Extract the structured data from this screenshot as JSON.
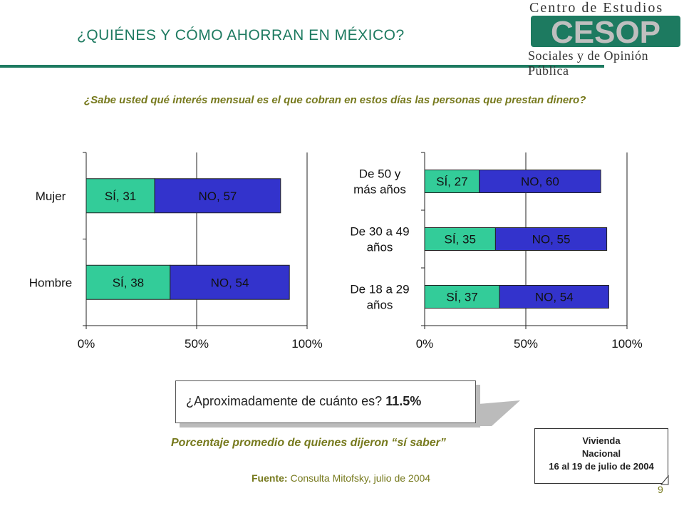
{
  "header": {
    "title": "¿QUIÉNES Y CÓMO AHORRAN EN MÉXICO?",
    "logo_line1": "Centro de Estudios",
    "logo_letters": "CESOP",
    "logo_line2": "Sociales y de Opinión Pública"
  },
  "question": "¿Sabe usted qué interés mensual es el que cobran en estos días las personas que prestan dinero?",
  "colors": {
    "si": "#33cc99",
    "no": "#3333cc",
    "accent": "#1d7a60",
    "olive": "#777a1e"
  },
  "chart_data": [
    {
      "type": "bar",
      "orientation": "horizontal",
      "stacked": true,
      "categories": [
        "Mujer",
        "Hombre"
      ],
      "series": [
        {
          "name": "SÍ",
          "values": [
            31,
            38
          ],
          "labels": [
            "SÍ, 31",
            "SÍ, 38"
          ]
        },
        {
          "name": "NO",
          "values": [
            57,
            54
          ],
          "labels": [
            "NO, 57",
            "NO, 54"
          ]
        }
      ],
      "xlim": [
        0,
        100
      ],
      "xticks": [
        "0%",
        "50%",
        "100%"
      ],
      "grid": true
    },
    {
      "type": "bar",
      "orientation": "horizontal",
      "stacked": true,
      "categories": [
        [
          "De 50 y",
          "más años"
        ],
        [
          "De 30 a 49",
          "años"
        ],
        [
          "De 18 a 29",
          "años"
        ]
      ],
      "series": [
        {
          "name": "SÍ",
          "values": [
            27,
            35,
            37
          ],
          "labels": [
            "SÍ, 27",
            "SÍ, 35",
            "SÍ, 37"
          ]
        },
        {
          "name": "NO",
          "values": [
            60,
            55,
            54
          ],
          "labels": [
            "NO, 60",
            "NO, 55",
            "NO, 54"
          ]
        }
      ],
      "xlim": [
        0,
        100
      ],
      "xticks": [
        "0%",
        "50%",
        "100%"
      ],
      "grid": true
    }
  ],
  "callout": {
    "question": "¿Aproximadamente de cuánto es?",
    "value": "11.5%"
  },
  "average_note": "Porcentaje promedio de quienes dijeron “sí saber”",
  "source": {
    "label": "Fuente:",
    "text": " Consulta Mitofsky,  julio de 2004"
  },
  "badge": {
    "line1": "Vivienda",
    "line2": "Nacional",
    "line3": "16 al 19 de julio de 2004"
  },
  "page_number": "9"
}
